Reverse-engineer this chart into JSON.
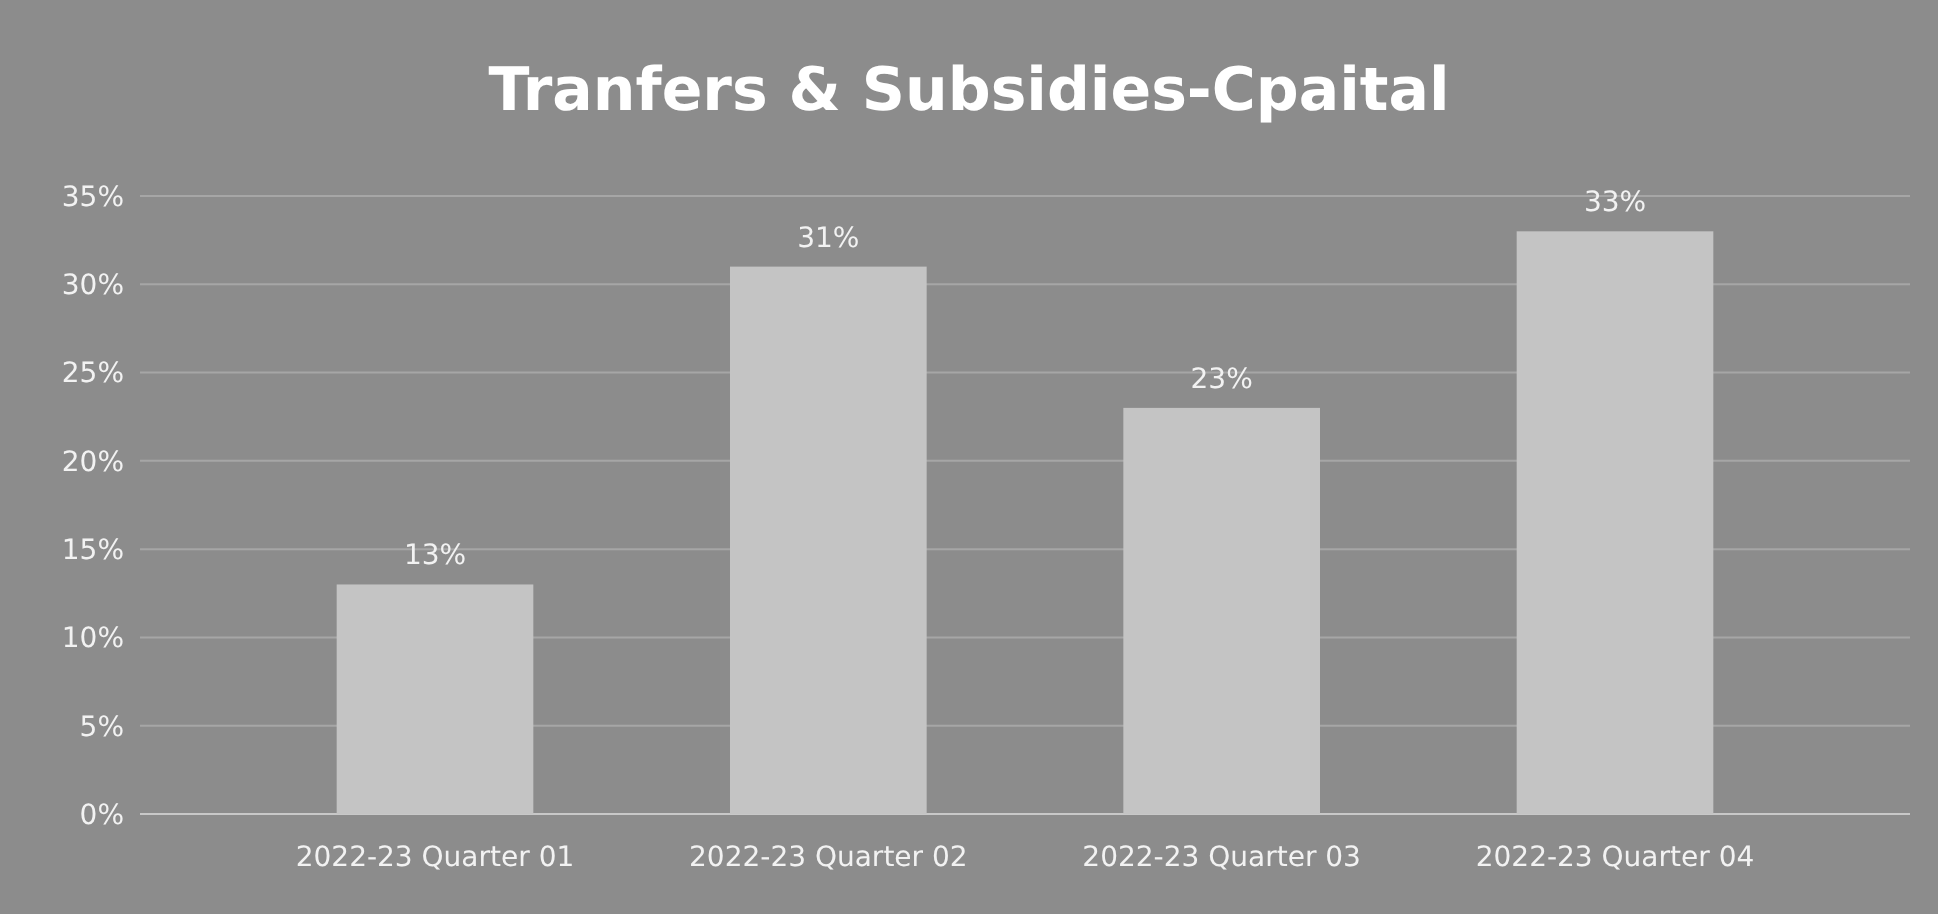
{
  "chart_data": {
    "type": "bar",
    "title": "Tranfers & Subsidies-Cpaital",
    "categories": [
      "2022-23 Quarter 01",
      "2022-23 Quarter 02",
      "2022-23 Quarter 03",
      "2022-23 Quarter 04"
    ],
    "values": [
      13,
      31,
      23,
      33
    ],
    "color": "#c4c4c4",
    "value_labels": [
      "13%",
      "31%",
      "23%",
      "33%"
    ],
    "ylim": [
      0,
      35
    ],
    "yticks": [
      {
        "value": 0,
        "label": "0%"
      },
      {
        "value": 5,
        "label": "5%"
      },
      {
        "value": 10,
        "label": "10%"
      },
      {
        "value": 15,
        "label": "15%"
      },
      {
        "value": 20,
        "label": "20%"
      },
      {
        "value": 25,
        "label": "25%"
      },
      {
        "value": 30,
        "label": "30%"
      },
      {
        "value": 35,
        "label": "35%"
      }
    ],
    "grid": "y"
  }
}
